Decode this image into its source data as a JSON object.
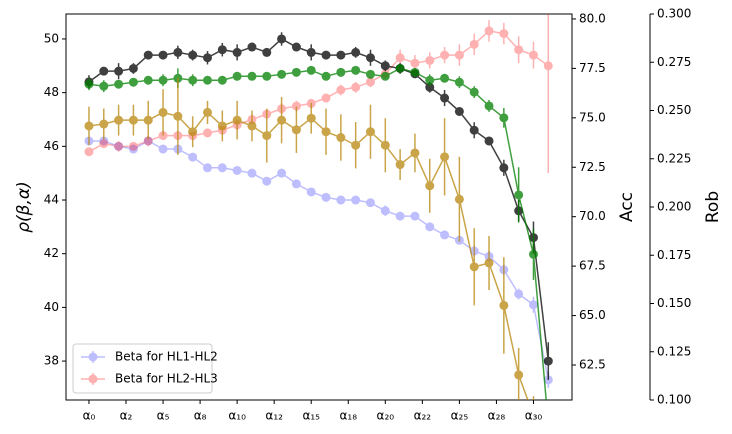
{
  "chart_data": {
    "type": "errorbar-line",
    "x": [
      0,
      1,
      2,
      3,
      4,
      5,
      6,
      7,
      8,
      9,
      10,
      11,
      12,
      13,
      14,
      15,
      16,
      17,
      18,
      19,
      20,
      21,
      22,
      23,
      24,
      25,
      26,
      27,
      28,
      29,
      30,
      31
    ],
    "xlim": [
      -1.55,
      32.6
    ],
    "xticks": [
      {
        "value": 0,
        "label": "α₀"
      },
      {
        "value": 2.5,
        "label": "α₂"
      },
      {
        "value": 5,
        "label": "α₅"
      },
      {
        "value": 7.5,
        "label": "α₈"
      },
      {
        "value": 10,
        "label": "α₁₀"
      },
      {
        "value": 12.5,
        "label": "α₁₂"
      },
      {
        "value": 15,
        "label": "α₁₅"
      },
      {
        "value": 17.5,
        "label": "α₁₈"
      },
      {
        "value": 20,
        "label": "α₂₀"
      },
      {
        "value": 22.5,
        "label": "α₂₂"
      },
      {
        "value": 25,
        "label": "α₂₅"
      },
      {
        "value": 27.5,
        "label": "α₂₈"
      },
      {
        "value": 30,
        "label": "α₃₀"
      }
    ],
    "ylabel": "ρ(β,α)",
    "ylim": [
      36.55,
      50.93
    ],
    "yticks": [
      38,
      40,
      42,
      44,
      46,
      48,
      50
    ],
    "y2label": "Acc",
    "y2color": "#008000",
    "y2lim": [
      60.73,
      80.25
    ],
    "y2ticks": [
      {
        "value": 62.5,
        "label": "62.5"
      },
      {
        "value": 65,
        "label": "65.0"
      },
      {
        "value": 67.5,
        "label": "67.5"
      },
      {
        "value": 70,
        "label": "70.0"
      },
      {
        "value": 72.5,
        "label": "72.5"
      },
      {
        "value": 75,
        "label": "75.0"
      },
      {
        "value": 77.5,
        "label": "77.5"
      },
      {
        "value": 80,
        "label": "80.0"
      }
    ],
    "y3label": "Rob",
    "y3color": "#b8860b",
    "y3lim": [
      0.1,
      0.3
    ],
    "y3ticks": [
      {
        "value": 0.1,
        "label": "0.100"
      },
      {
        "value": 0.125,
        "label": "0.125"
      },
      {
        "value": 0.15,
        "label": "0.150"
      },
      {
        "value": 0.175,
        "label": "0.175"
      },
      {
        "value": 0.2,
        "label": "0.200"
      },
      {
        "value": 0.225,
        "label": "0.225"
      },
      {
        "value": 0.25,
        "label": "0.250"
      },
      {
        "value": 0.275,
        "label": "0.275"
      },
      {
        "value": 0.3,
        "label": "0.300"
      }
    ],
    "legend": "lower left",
    "series": [
      {
        "name": "Beta for HL1-HL2",
        "color": "#0000ff",
        "opacity": 0.25,
        "axis": "y",
        "values": [
          46.2,
          46.2,
          46.0,
          45.9,
          46.2,
          45.9,
          45.9,
          45.6,
          45.2,
          45.2,
          45.1,
          45.0,
          44.7,
          45.0,
          44.6,
          44.3,
          44.1,
          44.0,
          44.0,
          43.9,
          43.6,
          43.4,
          43.4,
          43.0,
          42.7,
          42.5,
          42.1,
          41.9,
          41.4,
          40.5,
          40.1,
          37.3
        ],
        "errors": [
          0.15,
          0.1,
          0.15,
          0.15,
          0.1,
          0.15,
          0.15,
          0.1,
          0.1,
          0.15,
          0.1,
          0.15,
          0.15,
          0.1,
          0.15,
          0.15,
          0.1,
          0.1,
          0.1,
          0.15,
          0.2,
          0.15,
          0.1,
          0.15,
          0.15,
          0.1,
          0.2,
          0.2,
          0.2,
          0.2,
          0.3,
          0.3
        ]
      },
      {
        "name": "Beta for HL2-HL3",
        "color": "#ff0000",
        "opacity": 0.3,
        "axis": "y",
        "values": [
          45.8,
          46.1,
          46.0,
          46.0,
          46.2,
          46.4,
          46.4,
          46.4,
          46.5,
          46.6,
          46.8,
          47.0,
          47.2,
          47.4,
          47.5,
          47.6,
          47.8,
          48.1,
          48.2,
          48.4,
          48.7,
          49.3,
          49.1,
          49.2,
          49.4,
          49.4,
          49.8,
          50.3,
          50.2,
          49.6,
          49.4,
          49.0
        ],
        "errors": [
          0.15,
          0.15,
          0.2,
          0.15,
          0.2,
          0.15,
          0.15,
          0.15,
          0.15,
          0.15,
          0.2,
          0.15,
          0.15,
          0.2,
          0.2,
          0.15,
          0.15,
          0.2,
          0.2,
          0.2,
          0.2,
          0.3,
          0.3,
          0.3,
          0.3,
          0.4,
          0.4,
          0.4,
          0.4,
          0.5,
          0.5,
          4.0
        ]
      },
      {
        "color": "#000000",
        "opacity": 0.75,
        "axis": "y",
        "values": [
          48.4,
          48.8,
          48.8,
          48.9,
          49.4,
          49.4,
          49.5,
          49.4,
          49.3,
          49.6,
          49.5,
          49.7,
          49.5,
          50.0,
          49.7,
          49.5,
          49.4,
          49.4,
          49.5,
          49.3,
          49.0,
          48.9,
          48.7,
          48.2,
          47.8,
          47.3,
          46.6,
          46.2,
          45.2,
          43.6,
          42.6,
          38.0
        ],
        "errors": [
          0.25,
          0.1,
          0.3,
          0.2,
          0.15,
          0.15,
          0.25,
          0.2,
          0.25,
          0.25,
          0.3,
          0.15,
          0.1,
          0.25,
          0.15,
          0.3,
          0.15,
          0.15,
          0.2,
          0.3,
          0.2,
          0.2,
          0.15,
          0.2,
          0.3,
          0.15,
          0.3,
          0.15,
          0.3,
          0.4,
          0.6,
          0.7
        ]
      },
      {
        "color": "#008000",
        "opacity": 0.75,
        "axis": "y2",
        "values": [
          76.7,
          76.6,
          76.7,
          76.8,
          76.9,
          76.9,
          77.0,
          76.9,
          76.9,
          76.9,
          77.1,
          77.1,
          77.1,
          77.2,
          77.3,
          77.4,
          77.1,
          77.3,
          77.4,
          77.2,
          77.1,
          77.5,
          77.3,
          76.9,
          77.0,
          76.8,
          76.3,
          75.6,
          75.0,
          71.1,
          68.1,
          59.5
        ],
        "errors": [
          0.3,
          0.3,
          0.2,
          0.2,
          0.2,
          0.3,
          0.5,
          0.3,
          0.2,
          0.2,
          0.2,
          0.2,
          0.2,
          0.2,
          0.2,
          0.2,
          0.2,
          0.2,
          0.2,
          0.2,
          0.2,
          0.2,
          0.2,
          0.3,
          0.2,
          0.3,
          0.3,
          0.3,
          0.5,
          1.4,
          1.3,
          0
        ]
      },
      {
        "color": "#b8860b",
        "opacity": 0.75,
        "axis": "y3",
        "values": [
          0.242,
          0.243,
          0.245,
          0.245,
          0.245,
          0.249,
          0.247,
          0.239,
          0.249,
          0.242,
          0.245,
          0.242,
          0.237,
          0.245,
          0.24,
          0.246,
          0.239,
          0.236,
          0.232,
          0.239,
          0.232,
          0.222,
          0.228,
          0.211,
          0.226,
          0.204,
          0.169,
          0.171,
          0.149,
          0.113,
          0.092,
          null
        ],
        "errors": [
          0.01,
          0.008,
          0.008,
          0.008,
          0.01,
          0.012,
          0.02,
          0.008,
          0.006,
          0.008,
          0.01,
          0.008,
          0.014,
          0.012,
          0.012,
          0.008,
          0.012,
          0.012,
          0.012,
          0.014,
          0.014,
          0.008,
          0.01,
          0.014,
          0.02,
          0.022,
          0.02,
          0.014,
          0.025,
          0.014,
          0.01,
          null
        ]
      }
    ]
  }
}
